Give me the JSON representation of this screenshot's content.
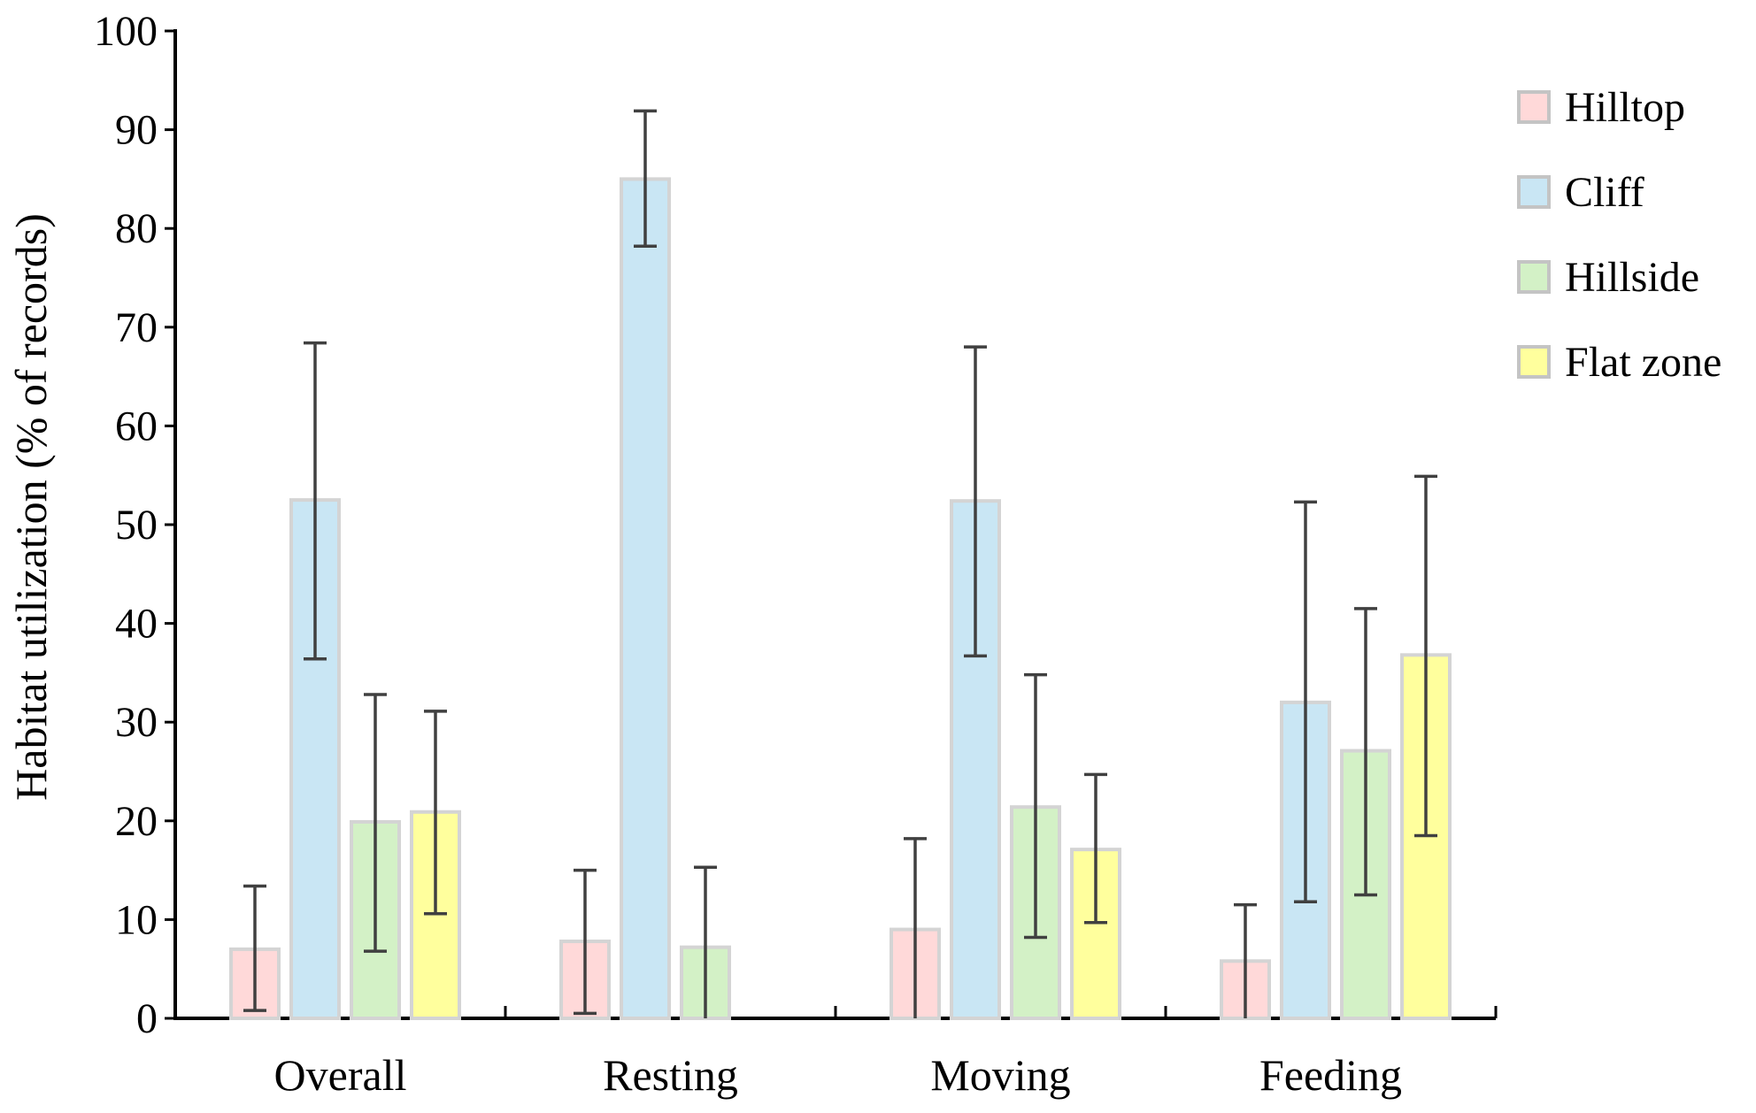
{
  "chart_data": {
    "type": "bar",
    "title": "",
    "xlabel": "",
    "ylabel": "Habitat utilization (% of records)",
    "ylim": [
      0,
      100
    ],
    "yticks": [
      0,
      10,
      20,
      30,
      40,
      50,
      60,
      70,
      80,
      90,
      100
    ],
    "grid": false,
    "legend_position": "top-right",
    "categories": [
      "Overall",
      "Resting",
      "Moving",
      "Feeding"
    ],
    "series": [
      {
        "name": "Hilltop",
        "color": "#ffd9d9",
        "values": [
          7,
          7.8,
          9,
          5.8
        ],
        "err_low": [
          0.8,
          0.5,
          null,
          null
        ],
        "err_high": [
          13.4,
          15,
          18.2,
          11.5
        ]
      },
      {
        "name": "Cliff",
        "color": "#c9e6f4",
        "values": [
          52.5,
          85,
          52.4,
          32
        ],
        "err_low": [
          36.4,
          78.2,
          36.7,
          11.8
        ],
        "err_high": [
          68.4,
          91.9,
          68,
          52.3
        ]
      },
      {
        "name": "Hillside",
        "color": "#d3f1c6",
        "values": [
          19.9,
          7.2,
          21.4,
          27.1
        ],
        "err_low": [
          6.8,
          null,
          8.2,
          12.5
        ],
        "err_high": [
          32.8,
          15.3,
          34.8,
          41.5
        ]
      },
      {
        "name": "Flat zone",
        "color": "#ffff9d",
        "values": [
          20.9,
          null,
          17.1,
          36.8
        ],
        "err_low": [
          10.6,
          null,
          9.7,
          18.5
        ],
        "err_high": [
          31.1,
          null,
          24.7,
          54.9
        ]
      }
    ]
  }
}
